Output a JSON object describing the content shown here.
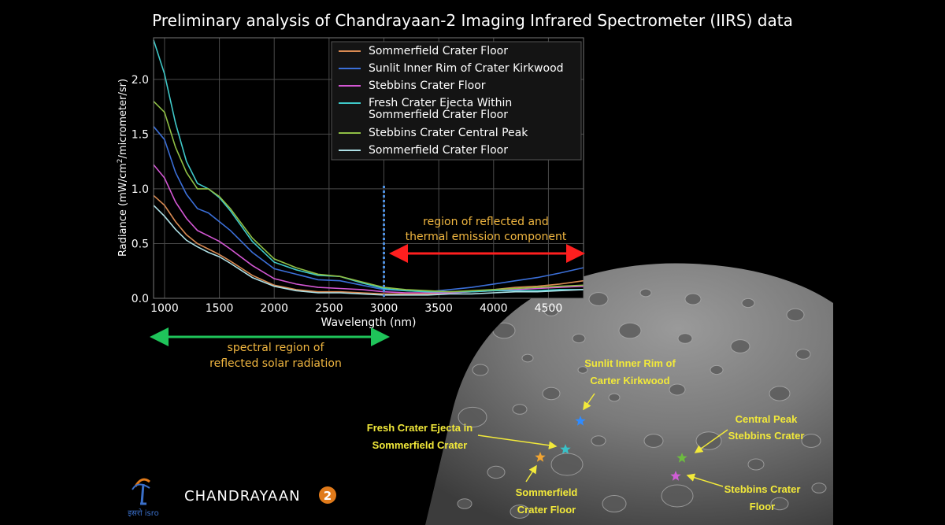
{
  "title": "Preliminary analysis of Chandrayaan-2 Imaging Infrared Spectrometer (IIRS) data",
  "chart_data": {
    "type": "line",
    "xlabel": "Wavelength (nm)",
    "ylabel_parts": [
      "Radiance (mW/cm",
      "2",
      "/micrometer/sr)"
    ],
    "xlim": [
      900,
      4820
    ],
    "ylim": [
      0,
      2.38
    ],
    "xticks": [
      1000,
      1500,
      2000,
      2500,
      3000,
      3500,
      4000,
      4500
    ],
    "yticks": [
      0.0,
      0.5,
      1.0,
      1.5,
      2.0
    ],
    "ytick_labels": [
      "0.0",
      "0.5",
      "1.0",
      "1.5",
      "2.0"
    ],
    "grid": true,
    "legend_position": "top-right",
    "series": [
      {
        "name": "Sommerfield Crater Floor",
        "color": "#d98a52",
        "x": [
          900,
          1000,
          1100,
          1200,
          1300,
          1400,
          1500,
          1600,
          1800,
          2000,
          2200,
          2400,
          2600,
          2800,
          3000,
          3200,
          3400,
          3600,
          3800,
          4000,
          4200,
          4400,
          4600,
          4820
        ],
        "y": [
          0.94,
          0.85,
          0.7,
          0.58,
          0.5,
          0.45,
          0.4,
          0.34,
          0.21,
          0.12,
          0.08,
          0.06,
          0.06,
          0.05,
          0.04,
          0.04,
          0.04,
          0.05,
          0.06,
          0.08,
          0.1,
          0.11,
          0.13,
          0.16
        ]
      },
      {
        "name": "Sunlit Inner Rim of Crater Kirkwood",
        "color": "#3b6fd8",
        "x": [
          900,
          1000,
          1100,
          1200,
          1300,
          1400,
          1500,
          1600,
          1800,
          2000,
          2200,
          2400,
          2600,
          2800,
          3000,
          3200,
          3400,
          3600,
          3800,
          4000,
          4200,
          4400,
          4600,
          4820
        ],
        "y": [
          1.57,
          1.45,
          1.15,
          0.95,
          0.82,
          0.78,
          0.7,
          0.62,
          0.42,
          0.27,
          0.22,
          0.17,
          0.16,
          0.12,
          0.08,
          0.07,
          0.06,
          0.08,
          0.1,
          0.13,
          0.16,
          0.19,
          0.23,
          0.28
        ]
      },
      {
        "name": "Stebbins Crater Floor",
        "color": "#d457d4",
        "x": [
          900,
          1000,
          1100,
          1200,
          1300,
          1400,
          1500,
          1600,
          1800,
          2000,
          2200,
          2400,
          2600,
          2800,
          3000,
          3200,
          3400,
          3600,
          3800,
          4000,
          4200,
          4400,
          4600,
          4820
        ],
        "y": [
          1.22,
          1.1,
          0.88,
          0.73,
          0.62,
          0.57,
          0.52,
          0.45,
          0.3,
          0.18,
          0.13,
          0.1,
          0.09,
          0.08,
          0.06,
          0.05,
          0.05,
          0.05,
          0.06,
          0.07,
          0.08,
          0.09,
          0.1,
          0.11
        ]
      },
      {
        "name": "Fresh Crater Ejecta Within\nSommerfield Crater Floor",
        "color": "#3fc9c9",
        "x": [
          900,
          1000,
          1100,
          1200,
          1300,
          1400,
          1500,
          1600,
          1800,
          2000,
          2200,
          2400,
          2600,
          2800,
          3000,
          3200,
          3400,
          3600,
          3800,
          4000,
          4200,
          4400,
          4600,
          4820
        ],
        "y": [
          2.36,
          2.05,
          1.6,
          1.25,
          1.05,
          1.0,
          0.92,
          0.8,
          0.52,
          0.33,
          0.26,
          0.21,
          0.2,
          0.14,
          0.09,
          0.07,
          0.06,
          0.06,
          0.06,
          0.07,
          0.07,
          0.07,
          0.08,
          0.08
        ]
      },
      {
        "name": "Stebbins Crater Central Peak",
        "color": "#8fbf45",
        "x": [
          900,
          1000,
          1100,
          1200,
          1300,
          1400,
          1500,
          1600,
          1800,
          2000,
          2200,
          2400,
          2600,
          2800,
          3000,
          3200,
          3400,
          3600,
          3800,
          4000,
          4200,
          4400,
          4600,
          4820
        ],
        "y": [
          1.8,
          1.7,
          1.38,
          1.15,
          1.0,
          1.0,
          0.93,
          0.82,
          0.55,
          0.36,
          0.28,
          0.22,
          0.2,
          0.15,
          0.1,
          0.08,
          0.07,
          0.06,
          0.07,
          0.08,
          0.09,
          0.1,
          0.11,
          0.12
        ]
      },
      {
        "name": "Sommerfield Crater Floor",
        "color": "#aee0e6",
        "x": [
          900,
          1000,
          1100,
          1200,
          1300,
          1400,
          1500,
          1600,
          1800,
          2000,
          2200,
          2400,
          2600,
          2800,
          3000,
          3200,
          3400,
          3600,
          3800,
          4000,
          4200,
          4400,
          4600,
          4820
        ],
        "y": [
          0.85,
          0.75,
          0.63,
          0.53,
          0.47,
          0.42,
          0.38,
          0.32,
          0.19,
          0.11,
          0.07,
          0.05,
          0.05,
          0.04,
          0.03,
          0.03,
          0.03,
          0.04,
          0.04,
          0.05,
          0.06,
          0.06,
          0.07,
          0.08
        ]
      }
    ],
    "threshold_x": 3000
  },
  "annotations": {
    "thermal": [
      "region of reflected and",
      "thermal emission component"
    ],
    "solar": [
      "spectral region of",
      "reflected solar radiation"
    ]
  },
  "moon_labels": [
    {
      "lines": [
        "Sunlit Inner Rim of",
        "Carter Kirkwood"
      ],
      "star_color": "#2f8bff"
    },
    {
      "lines": [
        "Fresh Crater Ejecta in",
        "Sommerfield Crater"
      ],
      "star_color": "#39c1c8"
    },
    {
      "lines": [
        "Central Peak",
        "Stebbins Crater"
      ],
      "star_color": "#6dbb3f"
    },
    {
      "lines": [
        "Stebbins Crater",
        "Floor"
      ],
      "star_color": "#d05ed6"
    },
    {
      "lines": [
        "Sommerfield",
        "Crater Floor"
      ],
      "star_color": "#f2a531"
    }
  ],
  "colors": {
    "accent_yellow": "#f2e93a",
    "annotation_orange": "#f0b640",
    "arrow_red": "#ff1f1f",
    "arrow_green": "#1fc45a",
    "grid": "#4a4a4a",
    "moon_surface": "#6b6b6b"
  },
  "footer": {
    "isro_text": "इसरो isro",
    "mission": "CHANDRAYAAN",
    "mission_number": "2"
  }
}
